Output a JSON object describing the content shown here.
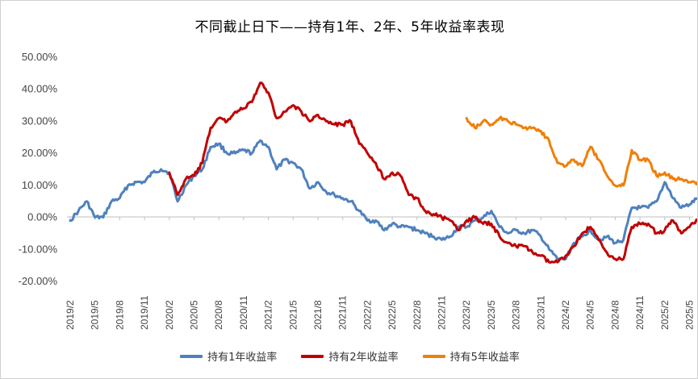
{
  "chart_data": {
    "type": "line",
    "title": "不同截止日下——持有1年、2年、5年收益率表现",
    "y_ticks": [
      "50.00%",
      "40.00%",
      "30.00%",
      "20.00%",
      "10.00%",
      "0.00%",
      "-10.00%",
      "-20.00%"
    ],
    "ylim": [
      -20,
      50
    ],
    "x_ticks": [
      "2019/2",
      "2019/5",
      "2019/8",
      "2019/11",
      "2020/2",
      "2020/5",
      "2020/8",
      "2020/11",
      "2021/2",
      "2021/5",
      "2021/8",
      "2021/11",
      "2022/2",
      "2022/5",
      "2022/8",
      "2022/11",
      "2023/2",
      "2023/5",
      "2023/8",
      "2023/11",
      "2024/2",
      "2024/5",
      "2024/8",
      "2024/11",
      "2025/2",
      "2025/5"
    ],
    "grid": false,
    "legend_position": "bottom",
    "series": [
      {
        "name": "持有1年收益率",
        "color": "#4f81bd",
        "points": [
          [
            "2019/2",
            -1
          ],
          [
            "2019/3",
            2
          ],
          [
            "2019/4",
            5
          ],
          [
            "2019/5",
            0
          ],
          [
            "2019/6",
            0
          ],
          [
            "2019/7",
            5
          ],
          [
            "2019/8",
            6
          ],
          [
            "2019/9",
            10
          ],
          [
            "2019/10",
            11
          ],
          [
            "2019/11",
            11
          ],
          [
            "2019/12",
            14
          ],
          [
            "2020/1",
            15
          ],
          [
            "2020/2",
            14
          ],
          [
            "2020/3",
            5
          ],
          [
            "2020/4",
            10
          ],
          [
            "2020/5",
            13
          ],
          [
            "2020/6",
            15
          ],
          [
            "2020/7",
            22
          ],
          [
            "2020/8",
            23
          ],
          [
            "2020/9",
            20
          ],
          [
            "2020/10",
            20
          ],
          [
            "2020/11",
            21
          ],
          [
            "2020/12",
            20
          ],
          [
            "2021/1",
            24
          ],
          [
            "2021/2",
            22
          ],
          [
            "2021/3",
            15
          ],
          [
            "2021/4",
            18
          ],
          [
            "2021/5",
            17
          ],
          [
            "2021/6",
            15
          ],
          [
            "2021/7",
            9
          ],
          [
            "2021/8",
            11
          ],
          [
            "2021/9",
            8
          ],
          [
            "2021/10",
            7
          ],
          [
            "2021/11",
            6
          ],
          [
            "2021/12",
            5
          ],
          [
            "2022/1",
            2
          ],
          [
            "2022/2",
            -1
          ],
          [
            "2022/3",
            -1
          ],
          [
            "2022/4",
            -4
          ],
          [
            "2022/5",
            -2
          ],
          [
            "2022/6",
            -3
          ],
          [
            "2022/7",
            -3
          ],
          [
            "2022/8",
            -4
          ],
          [
            "2022/9",
            -5
          ],
          [
            "2022/10",
            -6
          ],
          [
            "2022/11",
            -7
          ],
          [
            "2022/12",
            -6
          ],
          [
            "2023/1",
            -3
          ],
          [
            "2023/2",
            -3
          ],
          [
            "2023/3",
            -1
          ],
          [
            "2023/4",
            0
          ],
          [
            "2023/5",
            2
          ],
          [
            "2023/6",
            -3
          ],
          [
            "2023/7",
            -5
          ],
          [
            "2023/8",
            -4
          ],
          [
            "2023/9",
            -5
          ],
          [
            "2023/10",
            -4
          ],
          [
            "2023/11",
            -6
          ],
          [
            "2023/12",
            -10
          ],
          [
            "2024/1",
            -13
          ],
          [
            "2024/2",
            -13
          ],
          [
            "2024/3",
            -8
          ],
          [
            "2024/4",
            -6
          ],
          [
            "2024/5",
            -4
          ],
          [
            "2024/6",
            -7
          ],
          [
            "2024/7",
            -6
          ],
          [
            "2024/8",
            -8
          ],
          [
            "2024/9",
            -7
          ],
          [
            "2024/10",
            3
          ],
          [
            "2024/11",
            3
          ],
          [
            "2024/12",
            3
          ],
          [
            "2025/1",
            5
          ],
          [
            "2025/2",
            11
          ],
          [
            "2025/3",
            6
          ],
          [
            "2025/4",
            3
          ],
          [
            "2025/5",
            4
          ],
          [
            "2025/6",
            6
          ],
          [
            "2025/7",
            8
          ],
          [
            "2025/8",
            9
          ]
        ]
      },
      {
        "name": "持有2年收益率",
        "color": "#c00000",
        "points": [
          [
            "2020/2",
            14
          ],
          [
            "2020/3",
            7
          ],
          [
            "2020/4",
            12
          ],
          [
            "2020/5",
            13
          ],
          [
            "2020/6",
            17
          ],
          [
            "2020/7",
            28
          ],
          [
            "2020/8",
            31
          ],
          [
            "2020/9",
            30
          ],
          [
            "2020/10",
            33
          ],
          [
            "2020/11",
            34
          ],
          [
            "2020/12",
            36
          ],
          [
            "2021/1",
            42
          ],
          [
            "2021/2",
            39
          ],
          [
            "2021/3",
            31
          ],
          [
            "2021/4",
            33
          ],
          [
            "2021/5",
            35
          ],
          [
            "2021/6",
            33
          ],
          [
            "2021/7",
            30
          ],
          [
            "2021/8",
            32
          ],
          [
            "2021/9",
            30
          ],
          [
            "2021/10",
            29
          ],
          [
            "2021/11",
            29
          ],
          [
            "2021/12",
            30
          ],
          [
            "2022/1",
            23
          ],
          [
            "2022/2",
            20
          ],
          [
            "2022/3",
            17
          ],
          [
            "2022/4",
            12
          ],
          [
            "2022/5",
            14
          ],
          [
            "2022/6",
            13
          ],
          [
            "2022/7",
            7
          ],
          [
            "2022/8",
            6
          ],
          [
            "2022/9",
            2
          ],
          [
            "2022/10",
            1
          ],
          [
            "2022/11",
            0
          ],
          [
            "2022/12",
            -1
          ],
          [
            "2023/1",
            -4
          ],
          [
            "2023/2",
            -1
          ],
          [
            "2023/3",
            0
          ],
          [
            "2023/4",
            -2
          ],
          [
            "2023/5",
            -2
          ],
          [
            "2023/6",
            -6
          ],
          [
            "2023/7",
            -8
          ],
          [
            "2023/8",
            -9
          ],
          [
            "2023/9",
            -9
          ],
          [
            "2023/10",
            -11
          ],
          [
            "2023/11",
            -12
          ],
          [
            "2023/12",
            -14
          ],
          [
            "2024/1",
            -14
          ],
          [
            "2024/2",
            -12
          ],
          [
            "2024/3",
            -9
          ],
          [
            "2024/4",
            -5
          ],
          [
            "2024/5",
            -3
          ],
          [
            "2024/6",
            -7
          ],
          [
            "2024/7",
            -11
          ],
          [
            "2024/8",
            -13
          ],
          [
            "2024/9",
            -13
          ],
          [
            "2024/10",
            -3
          ],
          [
            "2024/11",
            -2
          ],
          [
            "2024/12",
            -2
          ],
          [
            "2025/1",
            -5
          ],
          [
            "2025/2",
            -4
          ],
          [
            "2025/3",
            -1
          ],
          [
            "2025/4",
            -5
          ],
          [
            "2025/5",
            -3
          ],
          [
            "2025/6",
            -1
          ],
          [
            "2025/7",
            1
          ],
          [
            "2025/8",
            2
          ]
        ]
      },
      {
        "name": "持有5年收益率",
        "color": "#f07f09",
        "points": [
          [
            "2023/2",
            31
          ],
          [
            "2023/3",
            28
          ],
          [
            "2023/4",
            30
          ],
          [
            "2023/5",
            29
          ],
          [
            "2023/6",
            31
          ],
          [
            "2023/7",
            30
          ],
          [
            "2023/8",
            29
          ],
          [
            "2023/9",
            28
          ],
          [
            "2023/10",
            28
          ],
          [
            "2023/11",
            27
          ],
          [
            "2023/12",
            24
          ],
          [
            "2024/1",
            17
          ],
          [
            "2024/2",
            16
          ],
          [
            "2024/3",
            18
          ],
          [
            "2024/4",
            16
          ],
          [
            "2024/5",
            22
          ],
          [
            "2024/6",
            18
          ],
          [
            "2024/7",
            13
          ],
          [
            "2024/8",
            10
          ],
          [
            "2024/9",
            10
          ],
          [
            "2024/10",
            21
          ],
          [
            "2024/11",
            18
          ],
          [
            "2024/12",
            18
          ],
          [
            "2025/1",
            13
          ],
          [
            "2025/2",
            14
          ],
          [
            "2025/3",
            12
          ],
          [
            "2025/4",
            12
          ],
          [
            "2025/5",
            11
          ],
          [
            "2025/6",
            11
          ],
          [
            "2025/7",
            10
          ],
          [
            "2025/8",
            6
          ]
        ]
      }
    ]
  }
}
